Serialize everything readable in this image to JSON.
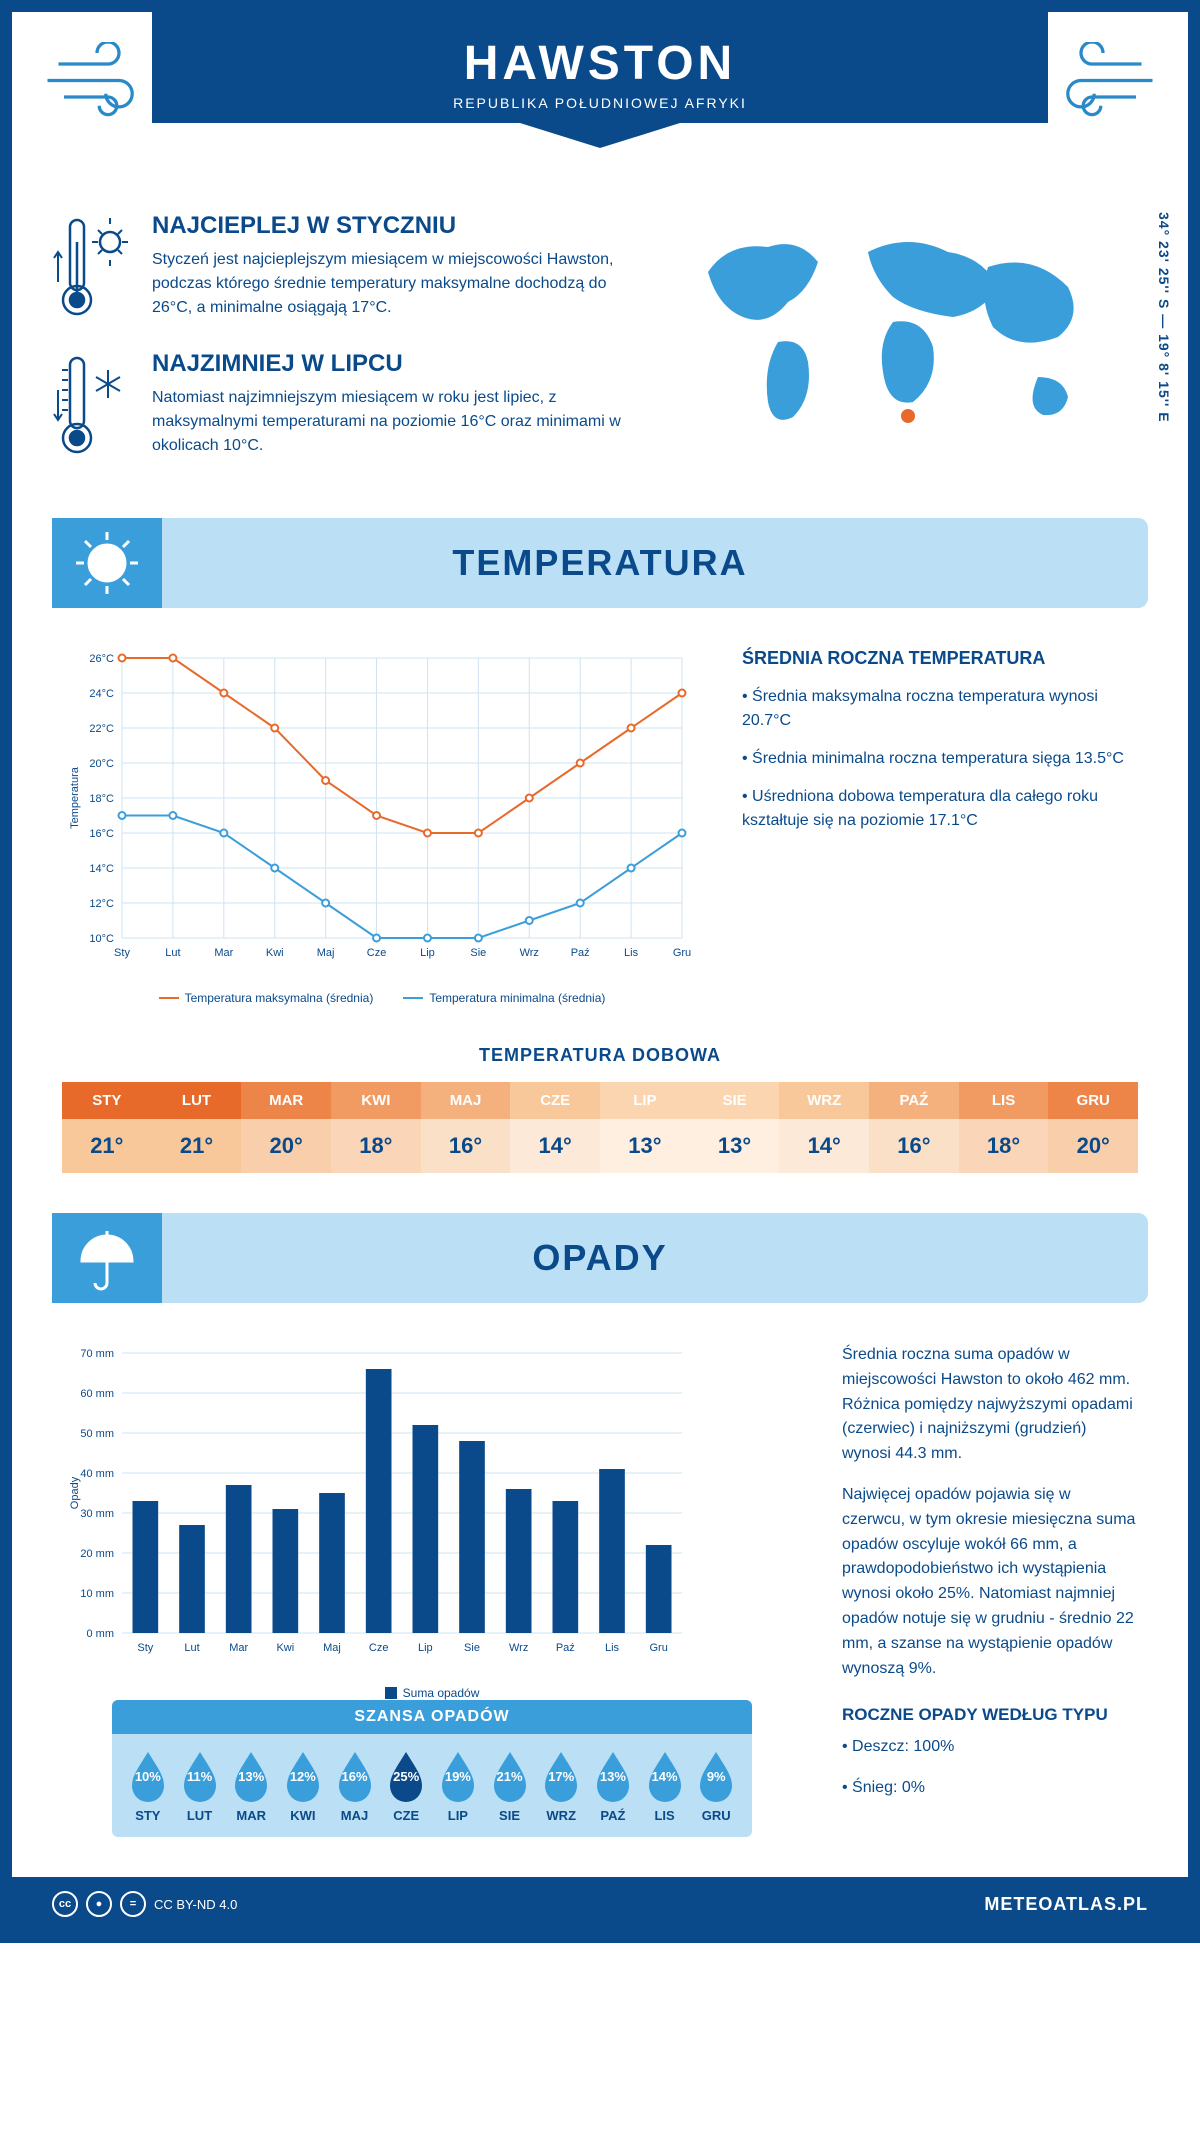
{
  "header": {
    "title": "HAWSTON",
    "subtitle": "REPUBLIKA POŁUDNIOWEJ AFRYKI"
  },
  "coords": "34° 23' 25'' S — 19° 8' 15'' E",
  "intro": {
    "hot": {
      "title": "NAJCIEPLEJ W STYCZNIU",
      "text": "Styczeń jest najcieplejszym miesiącem w miejscowości Hawston, podczas którego średnie temperatury maksymalne dochodzą do 26°C, a minimalne osiągają 17°C."
    },
    "cold": {
      "title": "NAJZIMNIEJ W LIPCU",
      "text": "Natomiast najzimniejszym miesiącem w roku jest lipiec, z maksymalnymi temperaturami na poziomie 16°C oraz minimami w okolicach 10°C."
    }
  },
  "temp": {
    "section_title": "TEMPERATURA",
    "chart": {
      "type": "line",
      "months": [
        "Sty",
        "Lut",
        "Mar",
        "Kwi",
        "Maj",
        "Cze",
        "Lip",
        "Sie",
        "Wrz",
        "Paź",
        "Lis",
        "Gru"
      ],
      "max_series": {
        "label": "Temperatura maksymalna (średnia)",
        "color": "#e86a2a",
        "values": [
          26,
          26,
          24,
          22,
          19,
          17,
          16,
          16,
          18,
          20,
          22,
          24
        ]
      },
      "min_series": {
        "label": "Temperatura minimalna (średnia)",
        "color": "#3a9edb",
        "values": [
          17,
          17,
          16,
          14,
          12,
          10,
          10,
          10,
          11,
          12,
          14,
          16
        ]
      },
      "ylim": [
        10,
        26
      ],
      "ytick_step": 2,
      "y_label": "Temperatura",
      "grid_color": "#cfe3f2",
      "background": "#ffffff",
      "line_width": 2,
      "marker": "circle"
    },
    "summary": {
      "title": "ŚREDNIA ROCZNA TEMPERATURA",
      "li1": "• Średnia maksymalna roczna temperatura wynosi 20.7°C",
      "li2": "• Średnia minimalna roczna temperatura sięga 13.5°C",
      "li3": "• Uśredniona dobowa temperatura dla całego roku kształtuje się na poziomie 17.1°C"
    },
    "daily": {
      "title": "TEMPERATURA DOBOWA",
      "months": [
        "STY",
        "LUT",
        "MAR",
        "KWI",
        "MAJ",
        "CZE",
        "LIP",
        "SIE",
        "WRZ",
        "PAŹ",
        "LIS",
        "GRU"
      ],
      "values": [
        "21°",
        "21°",
        "20°",
        "18°",
        "16°",
        "14°",
        "13°",
        "13°",
        "14°",
        "16°",
        "18°",
        "20°"
      ],
      "header_colors": [
        "#e86a2a",
        "#e86a2a",
        "#ed8548",
        "#f19b62",
        "#f5b17d",
        "#f8c79a",
        "#fad5b0",
        "#fad5b0",
        "#f8c79a",
        "#f5b17d",
        "#f19b62",
        "#ed8548"
      ],
      "value_bg": [
        "#f8c79a",
        "#f8c79a",
        "#f9ceab",
        "#fad5b8",
        "#fbe0c8",
        "#fde9d7",
        "#feefe1",
        "#feefe1",
        "#fde9d7",
        "#fbe0c8",
        "#fad5b8",
        "#f9ceab"
      ]
    }
  },
  "precip": {
    "section_title": "OPADY",
    "chart": {
      "type": "bar",
      "months": [
        "Sty",
        "Lut",
        "Mar",
        "Kwi",
        "Maj",
        "Cze",
        "Lip",
        "Sie",
        "Wrz",
        "Paź",
        "Lis",
        "Gru"
      ],
      "values": [
        33,
        27,
        37,
        31,
        35,
        66,
        52,
        48,
        36,
        33,
        41,
        22
      ],
      "label": "Suma opadów",
      "bar_color": "#0a4a8a",
      "ylim": [
        0,
        70
      ],
      "ytick_step": 10,
      "y_label": "Opady",
      "grid_color": "#cfe3f2",
      "background": "#ffffff",
      "bar_width": 0.55
    },
    "p1": "Średnia roczna suma opadów w miejscowości Hawston to około 462 mm. Różnica pomiędzy najwyższymi opadami (czerwiec) i najniższymi (grudzień) wynosi 44.3 mm.",
    "p2": "Najwięcej opadów pojawia się w czerwcu, w tym okresie miesięczna suma opadów oscyluje wokół 66 mm, a prawdopodobieństwo ich wystąpienia wynosi około 25%. Natomiast najmniej opadów notuje się w grudniu - średnio 22 mm, a szanse na wystąpienie opadów wynoszą 9%.",
    "by_type": {
      "title": "ROCZNE OPADY WEDŁUG TYPU",
      "rain": "• Deszcz: 100%",
      "snow": "• Śnieg: 0%"
    },
    "chance": {
      "title": "SZANSA OPADÓW",
      "months": [
        "STY",
        "LUT",
        "MAR",
        "KWI",
        "MAJ",
        "CZE",
        "LIP",
        "SIE",
        "WRZ",
        "PAŹ",
        "LIS",
        "GRU"
      ],
      "values": [
        "10%",
        "11%",
        "13%",
        "12%",
        "16%",
        "25%",
        "19%",
        "21%",
        "17%",
        "13%",
        "14%",
        "9%"
      ],
      "max_index": 5,
      "drop_color": "#3a9edb",
      "drop_max_color": "#0a4a8a"
    }
  },
  "footer": {
    "license": "CC BY-ND 4.0",
    "site": "METEOATLAS.PL"
  }
}
